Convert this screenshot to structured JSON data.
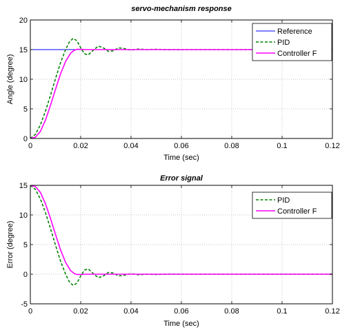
{
  "chart_data": [
    {
      "type": "line",
      "title": "servo-mechanism response",
      "xlabel": "Time (sec)",
      "ylabel": "Angle (degree)",
      "xlim": [
        0,
        0.12
      ],
      "ylim": [
        0,
        20
      ],
      "xticks": [
        0,
        0.02,
        0.04,
        0.06,
        0.08,
        0.1,
        0.12
      ],
      "xtick_labels": [
        "0",
        "0.02",
        "0.04",
        "0.06",
        "0.08",
        "0.1",
        "0.12"
      ],
      "yticks": [
        0,
        5,
        10,
        15,
        20
      ],
      "ytick_labels": [
        "0",
        "5",
        "10",
        "15",
        "20"
      ],
      "grid": true,
      "legend_position": "top-right",
      "series": [
        {
          "name": "Reference",
          "color": "#0000ff",
          "dash": "solid",
          "x": [
            0,
            0.12
          ],
          "y": [
            15,
            15
          ]
        },
        {
          "name": "PID",
          "color": "#008000",
          "dash": "dashed",
          "x": [
            0,
            0.002,
            0.004,
            0.006,
            0.008,
            0.01,
            0.012,
            0.014,
            0.0155,
            0.017,
            0.0185,
            0.02,
            0.0215,
            0.023,
            0.025,
            0.027,
            0.029,
            0.031,
            0.033,
            0.035,
            0.037,
            0.04,
            0.043,
            0.046,
            0.05,
            0.055,
            0.06,
            0.12
          ],
          "y": [
            0,
            0.7,
            2.3,
            4.6,
            7.3,
            10.1,
            12.8,
            15.0,
            16.3,
            16.9,
            16.5,
            15.3,
            14.3,
            14.1,
            14.9,
            15.6,
            15.3,
            14.7,
            14.8,
            15.3,
            15.2,
            14.9,
            15.1,
            15.0,
            15.05,
            14.98,
            15.0,
            15.0
          ]
        },
        {
          "name": "Controller F",
          "color": "#ff00ff",
          "dash": "solid",
          "x": [
            0,
            0.002,
            0.004,
            0.006,
            0.008,
            0.01,
            0.012,
            0.014,
            0.016,
            0.0175,
            0.0185,
            0.02,
            0.022,
            0.025,
            0.12
          ],
          "y": [
            0,
            0.2,
            1.2,
            3.1,
            5.6,
            8.3,
            10.9,
            13.0,
            14.4,
            14.9,
            15.05,
            15.05,
            15.0,
            15.0,
            15.0
          ]
        }
      ]
    },
    {
      "type": "line",
      "title": "Error signal",
      "xlabel": "Time (sec)",
      "ylabel": "Error  (degree)",
      "xlim": [
        0,
        0.12
      ],
      "ylim": [
        -5,
        15
      ],
      "xticks": [
        0,
        0.02,
        0.04,
        0.06,
        0.08,
        0.1,
        0.12
      ],
      "xtick_labels": [
        "0",
        "0.02",
        "0.04",
        "0.06",
        "0.08",
        "0.1",
        "0.12"
      ],
      "yticks": [
        -5,
        0,
        5,
        10,
        15
      ],
      "ytick_labels": [
        "-5",
        "0",
        "5",
        "10",
        "15"
      ],
      "grid": true,
      "legend_position": "top-right",
      "series": [
        {
          "name": "PID",
          "color": "#008000",
          "dash": "dashed",
          "x": [
            0,
            0.002,
            0.004,
            0.006,
            0.008,
            0.01,
            0.012,
            0.014,
            0.0155,
            0.017,
            0.0185,
            0.02,
            0.0215,
            0.023,
            0.025,
            0.027,
            0.029,
            0.031,
            0.033,
            0.035,
            0.037,
            0.04,
            0.043,
            0.046,
            0.05,
            0.055,
            0.06,
            0.12
          ],
          "y": [
            15,
            14.3,
            12.7,
            10.4,
            7.7,
            4.9,
            2.2,
            0.0,
            -1.3,
            -1.9,
            -1.5,
            -0.3,
            0.7,
            0.9,
            0.1,
            -0.6,
            -0.3,
            0.3,
            0.2,
            -0.3,
            -0.2,
            0.1,
            -0.1,
            0.0,
            -0.05,
            0.02,
            0.0,
            0.0
          ]
        },
        {
          "name": "Controller F",
          "color": "#ff00ff",
          "dash": "solid",
          "x": [
            0,
            0.002,
            0.004,
            0.006,
            0.008,
            0.01,
            0.012,
            0.014,
            0.016,
            0.0175,
            0.0185,
            0.02,
            0.022,
            0.025,
            0.12
          ],
          "y": [
            15,
            14.8,
            13.8,
            11.9,
            9.4,
            6.7,
            4.1,
            2.0,
            0.6,
            0.1,
            -0.05,
            -0.05,
            0.0,
            0.0,
            0.0
          ]
        }
      ]
    }
  ]
}
